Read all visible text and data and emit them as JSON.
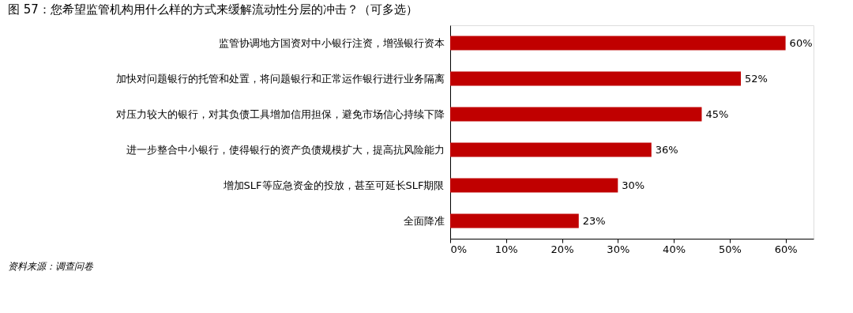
{
  "chart_data": {
    "type": "bar",
    "orientation": "horizontal",
    "title": "图 57：您希望监管机构用什么样的方式来缓解流动性分层的冲击？（可多选）",
    "categories": [
      "监管协调地方国资对中小银行注资，增强银行资本",
      "加快对问题银行的托管和处置，将问题银行和正常运作银行进行业务隔离",
      "对压力较大的银行，对其负债工具增加信用担保，避免市场信心持续下降",
      "进一步整合中小银行，使得银行的资产负债规模扩大，提高抗风险能力",
      "增加SLF等应急资金的投放，甚至可延长SLF期限",
      "全面降准"
    ],
    "values": [
      60,
      52,
      45,
      36,
      30,
      23
    ],
    "value_labels": [
      "60%",
      "52%",
      "45%",
      "36%",
      "30%",
      "23%"
    ],
    "color": "#c00000",
    "xlim": [
      0,
      65
    ],
    "xticks": [
      {
        "value": 0,
        "label": "0%"
      },
      {
        "value": 10,
        "label": "10%"
      },
      {
        "value": 20,
        "label": "20%"
      },
      {
        "value": 30,
        "label": "30%"
      },
      {
        "value": 40,
        "label": "40%"
      },
      {
        "value": 50,
        "label": "50%"
      },
      {
        "value": 60,
        "label": "60%"
      }
    ],
    "grid": false,
    "annotations": [
      "资料来源：调查问卷"
    ]
  }
}
